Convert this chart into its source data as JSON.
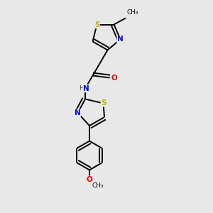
{
  "background_color": "#e8e8e8",
  "bond_color": "#000000",
  "atom_colors": {
    "S": "#b8b800",
    "N": "#0000ee",
    "O": "#ee0000",
    "C": "#000000",
    "H": "#404040"
  },
  "figsize": [
    3.0,
    3.0
  ],
  "dpi": 100
}
